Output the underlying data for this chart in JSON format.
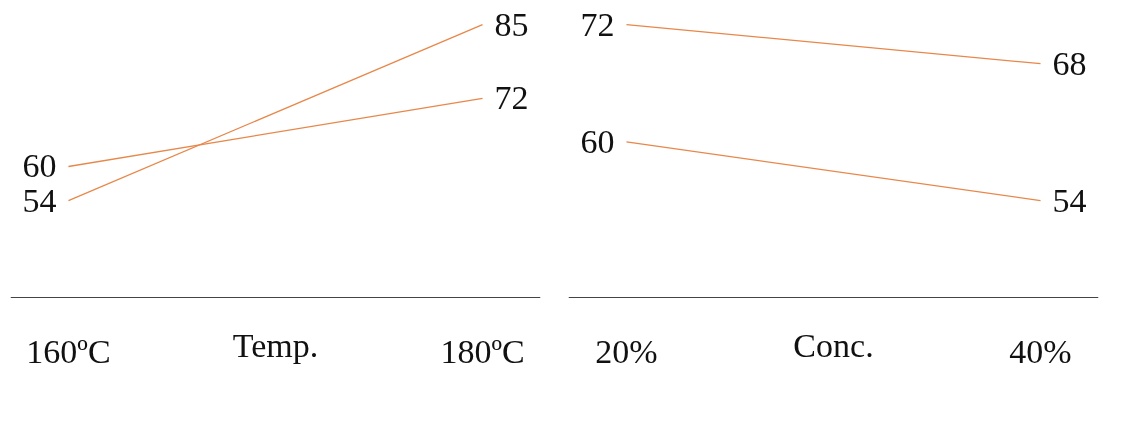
{
  "chart_data": [
    {
      "type": "line",
      "xlabel": "Temp.",
      "categories": [
        "160ºC",
        "180ºC"
      ],
      "data_labels": true,
      "series": [
        {
          "color": "#e8874a",
          "values": [
            60,
            72
          ]
        },
        {
          "color": "#e8874a",
          "values": [
            54,
            85
          ]
        }
      ]
    },
    {
      "type": "line",
      "xlabel": "Conc.",
      "categories": [
        "20%",
        "40%"
      ],
      "data_labels": true,
      "series": [
        {
          "color": "#e8874a",
          "values": [
            72,
            68
          ]
        },
        {
          "color": "#e8874a",
          "values": [
            60,
            54
          ]
        }
      ]
    }
  ]
}
